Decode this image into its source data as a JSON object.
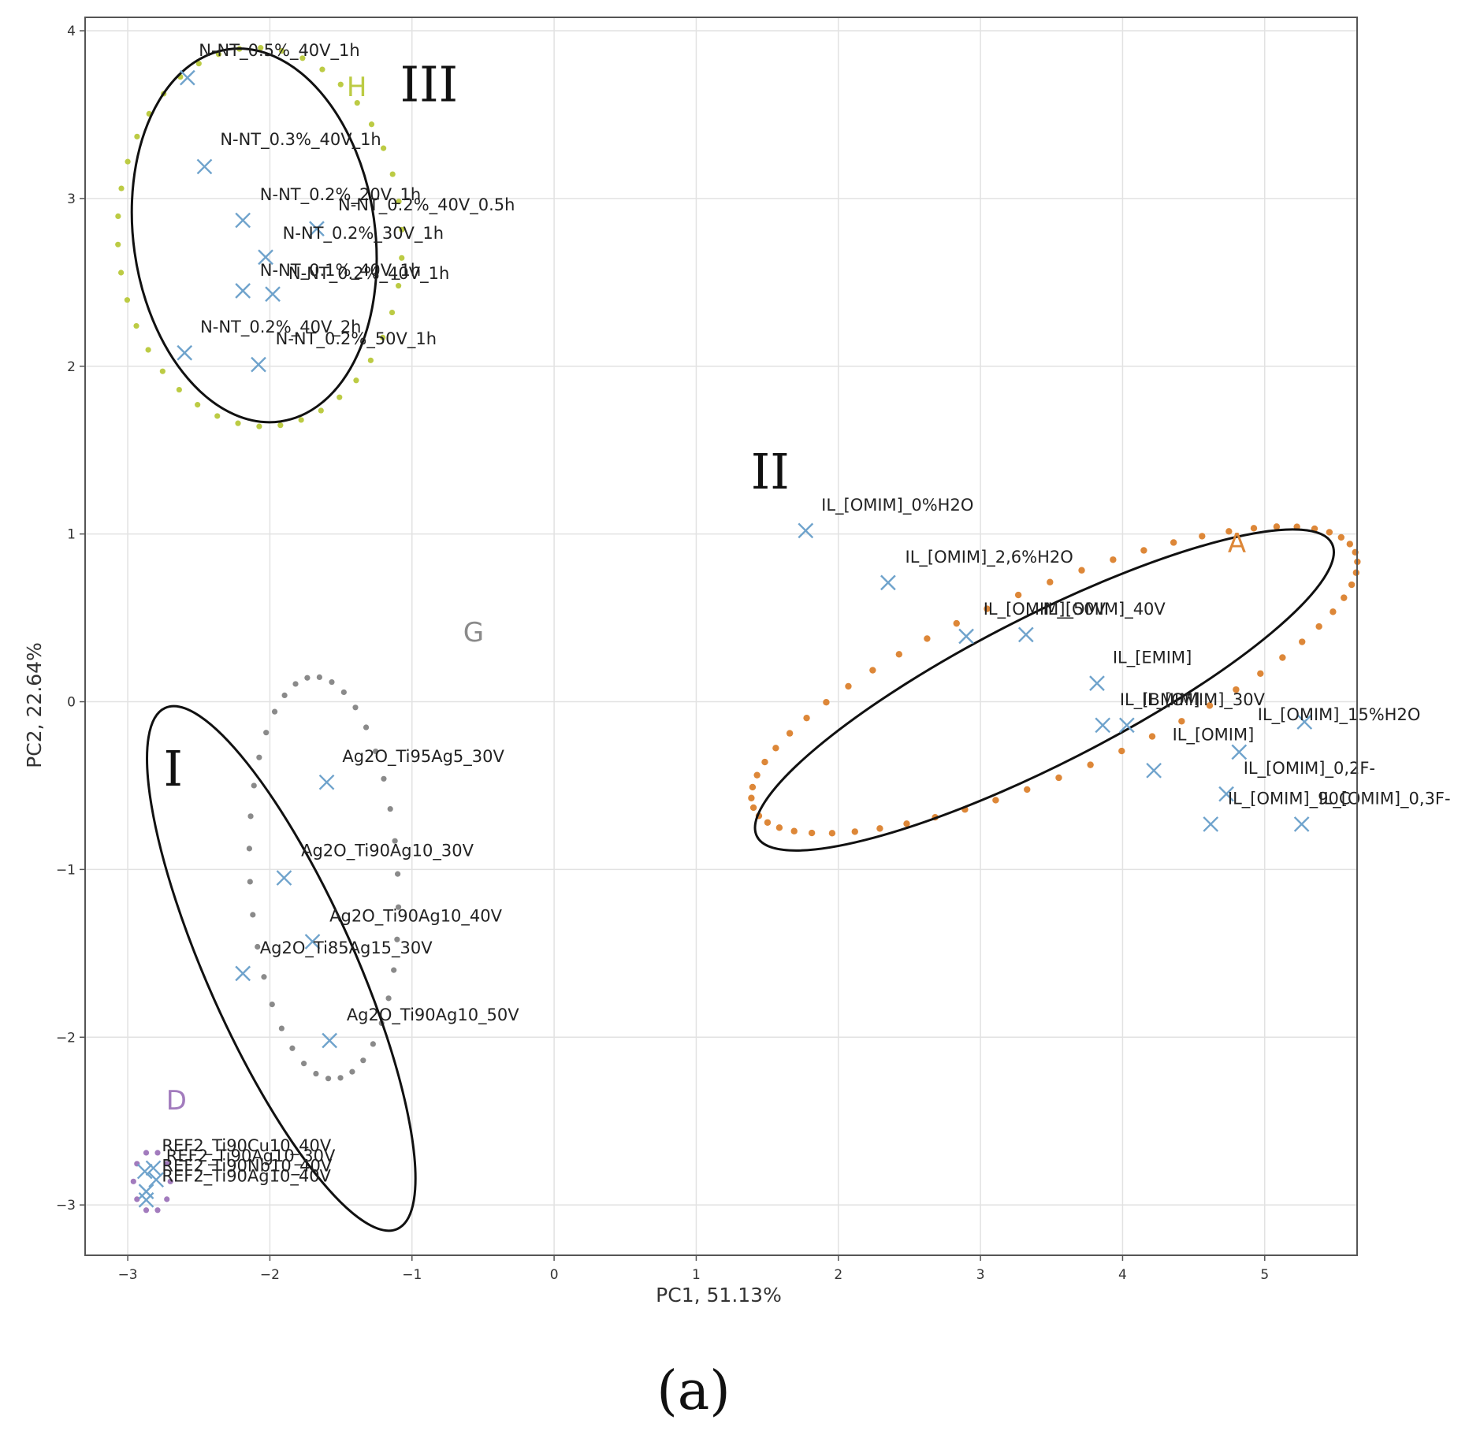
{
  "chart_data": {
    "type": "scatter",
    "title": "",
    "xlabel": "PC1, 51.13%",
    "ylabel": "PC2, 22.64%",
    "xlim": [
      -3.3,
      5.65
    ],
    "ylim": [
      -3.3,
      4.08
    ],
    "xticks": [
      -3,
      -2,
      -1,
      0,
      1,
      2,
      3,
      4,
      5
    ],
    "yticks": [
      -3,
      -2,
      -1,
      0,
      1,
      2,
      3,
      4
    ],
    "xtick_labels": [
      "−3",
      "−2",
      "−1",
      "0",
      "1",
      "2",
      "3",
      "4",
      "5"
    ],
    "ytick_labels": [
      "−3",
      "−2",
      "−1",
      "0",
      "1",
      "2",
      "3",
      "4"
    ],
    "grid": true,
    "marker": "x",
    "marker_color": "#6fa3cc",
    "points": [
      {
        "x": -2.58,
        "y": 3.72,
        "label": "N-NT_0.5%_40V_1h",
        "lx": -2.5,
        "ly": 3.85
      },
      {
        "x": -2.46,
        "y": 3.19,
        "label": "N-NT_0.3%_40V_1h",
        "lx": -2.35,
        "ly": 3.32
      },
      {
        "x": -2.19,
        "y": 2.87,
        "label": "N-NT_0.2%_20V_1h",
        "lx": -2.07,
        "ly": 2.99
      },
      {
        "x": -1.67,
        "y": 2.82,
        "label": "N-NT_0.2%_40V_0.5h",
        "lx": -1.52,
        "ly": 2.93
      },
      {
        "x": -2.03,
        "y": 2.65,
        "label": "N-NT_0.2%_30V_1h",
        "lx": -1.91,
        "ly": 2.76
      },
      {
        "x": -2.19,
        "y": 2.45,
        "label": "N-NT_0.1%_40V_1h",
        "lx": -2.07,
        "ly": 2.54
      },
      {
        "x": -1.98,
        "y": 2.43,
        "label": "N-NT_0.2%_40V_1h",
        "lx": -1.87,
        "ly": 2.52
      },
      {
        "x": -2.6,
        "y": 2.08,
        "label": "N-NT_0.2%_40V_2h",
        "lx": -2.49,
        "ly": 2.2
      },
      {
        "x": -2.08,
        "y": 2.01,
        "label": "N-NT_0.2%_50V_1h",
        "lx": -1.96,
        "ly": 2.13
      },
      {
        "x": 1.77,
        "y": 1.02,
        "label": "IL_[OMIM]_0%H2O",
        "lx": 1.88,
        "ly": 1.14
      },
      {
        "x": 2.35,
        "y": 0.71,
        "label": "IL_[OMIM]_2,6%H2O",
        "lx": 2.47,
        "ly": 0.83
      },
      {
        "x": 2.9,
        "y": 0.39,
        "label": "IL_[OMIM]_50V",
        "lx": 3.02,
        "ly": 0.52
      },
      {
        "x": 3.32,
        "y": 0.4,
        "label": "IL_[OMIM]_40V",
        "lx": 3.44,
        "ly": 0.52
      },
      {
        "x": 3.82,
        "y": 0.11,
        "label": "IL_[EMIM]",
        "lx": 3.93,
        "ly": 0.23
      },
      {
        "x": 3.86,
        "y": -0.14,
        "label": "IL_[BMIM]",
        "lx": 3.98,
        "ly": -0.02
      },
      {
        "x": 4.03,
        "y": -0.14,
        "label": "IL_[OMIM]_30V",
        "lx": 4.14,
        "ly": -0.02
      },
      {
        "x": 4.82,
        "y": -0.3,
        "label": "IL_[OMIM]",
        "lx": 4.35,
        "ly": -0.23
      },
      {
        "x": 5.28,
        "y": -0.12,
        "label": "IL_[OMIM]_15%H2O",
        "lx": 4.95,
        "ly": -0.11
      },
      {
        "x": 4.22,
        "y": -0.41,
        "label": "",
        "lx": 0,
        "ly": 0
      },
      {
        "x": 4.73,
        "y": -0.55,
        "label": "IL_[OMIM]_0,2F-",
        "lx": 4.85,
        "ly": -0.43
      },
      {
        "x": 4.62,
        "y": -0.73,
        "label": "IL_[OMIM]_90C",
        "lx": 4.74,
        "ly": -0.61
      },
      {
        "x": 5.26,
        "y": -0.73,
        "label": "IL_[OMIM]_0,3F-",
        "lx": 5.38,
        "ly": -0.61
      },
      {
        "x": -1.6,
        "y": -0.48,
        "label": "Ag2O_Ti95Ag5_30V",
        "lx": -1.49,
        "ly": -0.36
      },
      {
        "x": -1.9,
        "y": -1.05,
        "label": "Ag2O_Ti90Ag10_30V",
        "lx": -1.78,
        "ly": -0.92
      },
      {
        "x": -1.7,
        "y": -1.43,
        "label": "Ag2O_Ti90Ag10_40V",
        "lx": -1.58,
        "ly": -1.31
      },
      {
        "x": -2.19,
        "y": -1.62,
        "label": "Ag2O_Ti85Ag15_30V",
        "lx": -2.07,
        "ly": -1.5
      },
      {
        "x": -1.58,
        "y": -2.02,
        "label": "Ag2O_Ti90Ag10_50V",
        "lx": -1.46,
        "ly": -1.9
      },
      {
        "x": -2.88,
        "y": -2.8,
        "label": "REF2_Ti90Cu10_40V",
        "lx": -2.76,
        "ly": -2.68
      },
      {
        "x": -2.82,
        "y": -2.78,
        "label": "REF2_Ti90Ag10_30V",
        "lx": -2.73,
        "ly": -2.74
      },
      {
        "x": -2.8,
        "y": -2.85,
        "label": "REF2_Ti90Nb10_40V",
        "lx": -2.76,
        "ly": -2.8
      },
      {
        "x": -2.87,
        "y": -2.92,
        "label": "REF2_Ti90Ag10_40V",
        "lx": -2.76,
        "ly": -2.86
      },
      {
        "x": -2.87,
        "y": -2.97,
        "label": "",
        "lx": 0,
        "ly": 0
      }
    ],
    "groups": [
      {
        "letter": "H",
        "color": "#bccb44",
        "letter_x": -1.46,
        "letter_y": 3.61,
        "cx": -2.07,
        "cy": 2.77,
        "rx": 1.0,
        "ry": 1.13,
        "angle": 3
      },
      {
        "letter": "A",
        "color": "#dd8738",
        "letter_x": 4.74,
        "letter_y": 0.89,
        "cx": 3.52,
        "cy": 0.13,
        "rx": 2.3,
        "ry": 0.55,
        "angle": 23
      },
      {
        "letter": "G",
        "color": "#8a8a8a",
        "letter_x": -0.64,
        "letter_y": 0.36,
        "cx": -1.62,
        "cy": -1.05,
        "rx": 0.52,
        "ry": 1.2,
        "angle": 3
      },
      {
        "letter": "D",
        "color": "#a27bbd",
        "letter_x": -2.73,
        "letter_y": -2.43,
        "cx": -2.83,
        "cy": -2.86,
        "rx": 0.13,
        "ry": 0.18,
        "angle": 0
      }
    ],
    "clusters": [
      {
        "label": "III",
        "label_x": -0.88,
        "label_y": 3.58,
        "cx": -2.11,
        "cy": 2.78,
        "rx": 0.85,
        "ry": 1.12,
        "angle": 8
      },
      {
        "label": "II",
        "label_x": 1.52,
        "label_y": 1.27,
        "cx": 3.45,
        "cy": 0.07,
        "rx": 2.27,
        "ry": 0.44,
        "angle": 27
      },
      {
        "label": "I",
        "label_x": -2.68,
        "label_y": -0.5,
        "cx": -1.92,
        "cy": -1.59,
        "rx": 0.52,
        "ry": 1.7,
        "angle": 24
      }
    ]
  },
  "caption": "(a)"
}
